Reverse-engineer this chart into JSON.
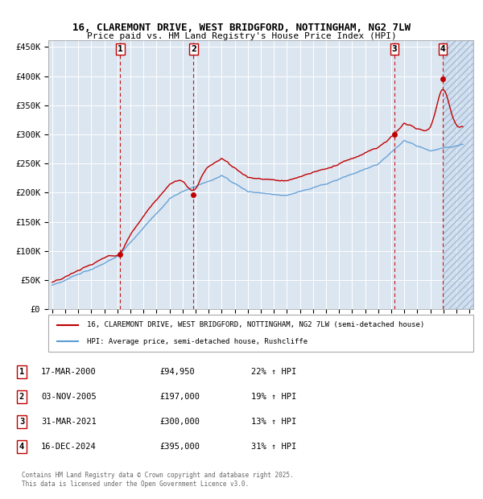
{
  "title": "16, CLAREMONT DRIVE, WEST BRIDGFORD, NOTTINGHAM, NG2 7LW",
  "subtitle": "Price paid vs. HM Land Registry's House Price Index (HPI)",
  "ylabel_ticks": [
    "£0",
    "£50K",
    "£100K",
    "£150K",
    "£200K",
    "£250K",
    "£300K",
    "£350K",
    "£400K",
    "£450K"
  ],
  "ytick_vals": [
    0,
    50000,
    100000,
    150000,
    200000,
    250000,
    300000,
    350000,
    400000,
    450000
  ],
  "ylim": [
    0,
    462000
  ],
  "xlim_start": 1994.7,
  "xlim_end": 2027.3,
  "hpi_color": "#5b9bd5",
  "price_color": "#c00000",
  "background_color": "#dce6f1",
  "hatch_color": "#c5d9f1",
  "grid_color": "#ffffff",
  "legend_label_price": "16, CLAREMONT DRIVE, WEST BRIDGFORD, NOTTINGHAM, NG2 7LW (semi-detached house)",
  "legend_label_hpi": "HPI: Average price, semi-detached house, Rushcliffe",
  "transaction_labels": [
    {
      "num": 1,
      "date": "17-MAR-2000",
      "price": "£94,950",
      "change": "22% ↑ HPI",
      "x": 2000.21,
      "y_price": 94950
    },
    {
      "num": 2,
      "date": "03-NOV-2005",
      "price": "£197,000",
      "change": "19% ↑ HPI",
      "x": 2005.84,
      "y_price": 197000
    },
    {
      "num": 3,
      "date": "31-MAR-2021",
      "price": "£300,000",
      "change": "13% ↑ HPI",
      "x": 2021.25,
      "y_price": 300000
    },
    {
      "num": 4,
      "date": "16-DEC-2024",
      "price": "£395,000",
      "change": "31% ↑ HPI",
      "x": 2024.96,
      "y_price": 395000
    }
  ],
  "footer_line1": "Contains HM Land Registry data © Crown copyright and database right 2025.",
  "footer_line2": "This data is licensed under the Open Government Licence v3.0.",
  "xtick_years": [
    1995,
    1996,
    1997,
    1998,
    1999,
    2000,
    2001,
    2002,
    2003,
    2004,
    2005,
    2006,
    2007,
    2008,
    2009,
    2010,
    2011,
    2012,
    2013,
    2014,
    2015,
    2016,
    2017,
    2018,
    2019,
    2020,
    2021,
    2022,
    2023,
    2024,
    2025,
    2026,
    2027
  ],
  "hatch_start": 2025.0
}
